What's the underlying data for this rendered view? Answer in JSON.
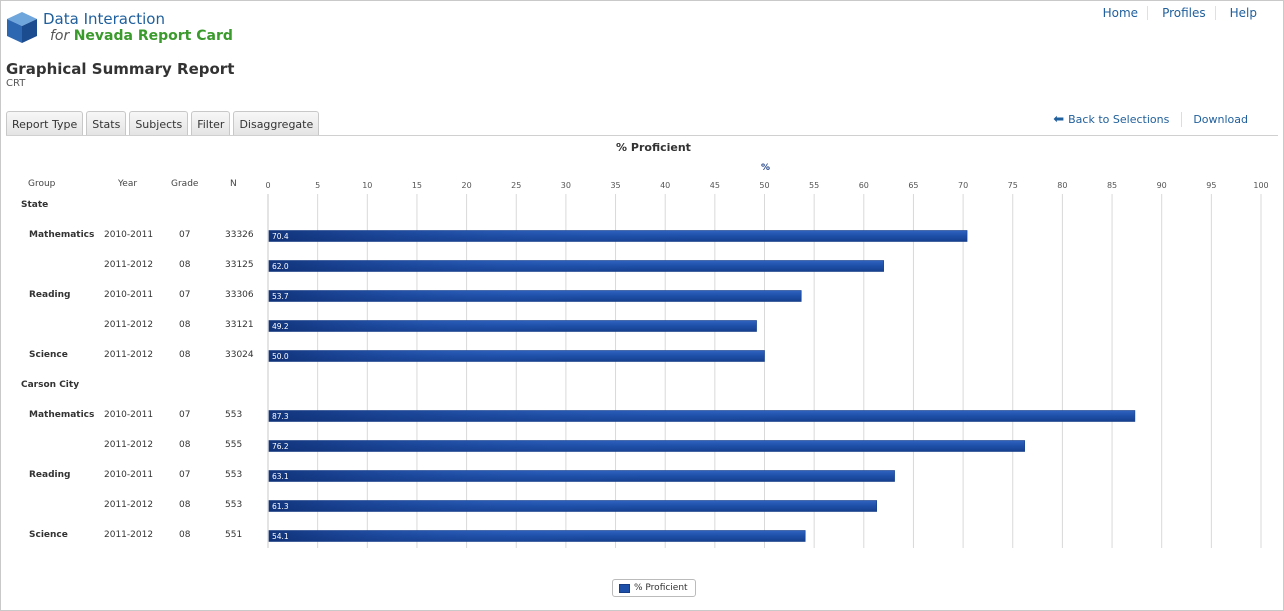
{
  "brand": {
    "line1": "Data Interaction",
    "line2_for": "for",
    "line2_name": "Nevada Report Card"
  },
  "topnav": [
    "Home",
    "Profiles",
    "Help"
  ],
  "report": {
    "title": "Graphical Summary Report",
    "subtitle": "CRT"
  },
  "tabs": [
    "Report Type",
    "Stats",
    "Subjects",
    "Filter",
    "Disaggregate"
  ],
  "actions": {
    "back": "Back to Selections",
    "download": "Download"
  },
  "columns": {
    "group": "Group",
    "year": "Year",
    "grade": "Grade",
    "n": "N"
  },
  "colors": {
    "bar": "#1e4fa8",
    "accent": "#1f5f9c",
    "brand_green": "#3a9a2c"
  },
  "chart_data": {
    "type": "bar",
    "orientation": "horizontal",
    "title": "% Proficient",
    "xlabel": "%",
    "xlim": [
      0,
      100
    ],
    "xticks": [
      0,
      5,
      10,
      15,
      20,
      25,
      30,
      35,
      40,
      45,
      50,
      55,
      60,
      65,
      70,
      75,
      80,
      85,
      90,
      95,
      100
    ],
    "grid": true,
    "legend": {
      "position": "bottom-center",
      "entries": [
        "% Proficient"
      ]
    },
    "rows": [
      {
        "kind": "group",
        "label": "State"
      },
      {
        "kind": "bar",
        "subject": "Mathematics",
        "year": "2010-2011",
        "grade": "07",
        "n": "33326",
        "value": 70.4,
        "label": "70.4"
      },
      {
        "kind": "bar",
        "subject": "",
        "year": "2011-2012",
        "grade": "08",
        "n": "33125",
        "value": 62.0,
        "label": "62.0"
      },
      {
        "kind": "bar",
        "subject": "Reading",
        "year": "2010-2011",
        "grade": "07",
        "n": "33306",
        "value": 53.7,
        "label": "53.7"
      },
      {
        "kind": "bar",
        "subject": "",
        "year": "2011-2012",
        "grade": "08",
        "n": "33121",
        "value": 49.2,
        "label": "49.2"
      },
      {
        "kind": "bar",
        "subject": "Science",
        "year": "2011-2012",
        "grade": "08",
        "n": "33024",
        "value": 50.0,
        "label": "50.0"
      },
      {
        "kind": "group",
        "label": "Carson City"
      },
      {
        "kind": "bar",
        "subject": "Mathematics",
        "year": "2010-2011",
        "grade": "07",
        "n": "553",
        "value": 87.3,
        "label": "87.3"
      },
      {
        "kind": "bar",
        "subject": "",
        "year": "2011-2012",
        "grade": "08",
        "n": "555",
        "value": 76.2,
        "label": "76.2"
      },
      {
        "kind": "bar",
        "subject": "Reading",
        "year": "2010-2011",
        "grade": "07",
        "n": "553",
        "value": 63.1,
        "label": "63.1"
      },
      {
        "kind": "bar",
        "subject": "",
        "year": "2011-2012",
        "grade": "08",
        "n": "553",
        "value": 61.3,
        "label": "61.3"
      },
      {
        "kind": "bar",
        "subject": "Science",
        "year": "2011-2012",
        "grade": "08",
        "n": "551",
        "value": 54.1,
        "label": "54.1"
      }
    ]
  }
}
